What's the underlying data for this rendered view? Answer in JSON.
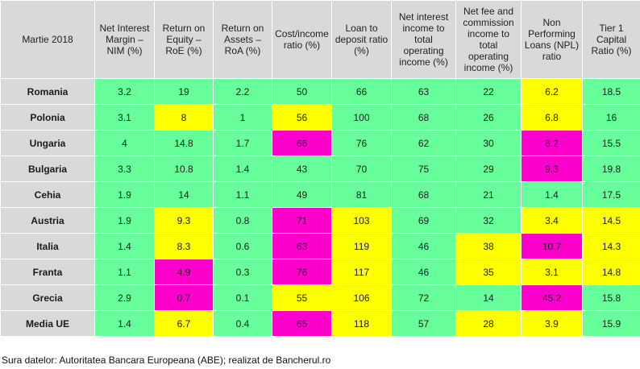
{
  "chart_data": {
    "type": "table",
    "corner_label": "Martie 2018",
    "columns": [
      "Net Interest Margin – NIM (%)",
      "Return on Equity – RoE (%)",
      "Return on Assets – RoA (%)",
      "Cost/income ratio (%)",
      "Loan to deposit ratio (%)",
      "Net interest income to total operating income (%)",
      "Net fee and commission income to total operating income (%)",
      "Non Performing Loans (NPL) ratio",
      "Tier 1 Capital Ratio (%)"
    ],
    "rows": [
      {
        "label": "Romania",
        "values": [
          "3.2",
          "19",
          "2.2",
          "50",
          "66",
          "63",
          "22",
          "6.2",
          "18.5"
        ],
        "status": [
          "g",
          "g",
          "g",
          "g",
          "g",
          "g",
          "g",
          "y",
          "g"
        ]
      },
      {
        "label": "Polonia",
        "values": [
          "3.1",
          "8",
          "1",
          "56",
          "100",
          "68",
          "26",
          "6.8",
          "16"
        ],
        "status": [
          "g",
          "y",
          "g",
          "y",
          "g",
          "g",
          "g",
          "y",
          "g"
        ]
      },
      {
        "label": "Ungaria",
        "values": [
          "4",
          "14.8",
          "1.7",
          "66",
          "76",
          "62",
          "30",
          "8.2",
          "15.5"
        ],
        "status": [
          "g",
          "g",
          "g",
          "m",
          "g",
          "g",
          "g",
          "m",
          "g"
        ]
      },
      {
        "label": "Bulgaria",
        "values": [
          "3.3",
          "10.8",
          "1.4",
          "43",
          "70",
          "75",
          "29",
          "9.3",
          "19.8"
        ],
        "status": [
          "g",
          "g",
          "g",
          "g",
          "g",
          "g",
          "g",
          "m",
          "g"
        ]
      },
      {
        "label": "Cehia",
        "values": [
          "1.9",
          "14",
          "1.1",
          "49",
          "81",
          "68",
          "21",
          "1.4",
          "17.5"
        ],
        "status": [
          "g",
          "g",
          "g",
          "g",
          "g",
          "g",
          "g",
          "g",
          "g"
        ]
      },
      {
        "label": "Austria",
        "values": [
          "1.9",
          "9.3",
          "0.8",
          "71",
          "103",
          "69",
          "32",
          "3.4",
          "14.5"
        ],
        "status": [
          "g",
          "y",
          "g",
          "m",
          "y",
          "g",
          "g",
          "y",
          "y"
        ]
      },
      {
        "label": "Italia",
        "values": [
          "1.4",
          "8.3",
          "0.6",
          "63",
          "119",
          "46",
          "38",
          "10.7",
          "14.3"
        ],
        "status": [
          "g",
          "y",
          "g",
          "m",
          "y",
          "g",
          "y",
          "m",
          "y"
        ]
      },
      {
        "label": "Franta",
        "values": [
          "1.1",
          "4.9",
          "0.3",
          "76",
          "117",
          "46",
          "35",
          "3.1",
          "14.8"
        ],
        "status": [
          "g",
          "m",
          "g",
          "m",
          "y",
          "g",
          "y",
          "y",
          "y"
        ]
      },
      {
        "label": "Grecia",
        "values": [
          "2.9",
          "0.7",
          "0.1",
          "55",
          "106",
          "72",
          "14",
          "45.2",
          "15.8"
        ],
        "status": [
          "g",
          "m",
          "g",
          "y",
          "y",
          "g",
          "g",
          "m",
          "g"
        ]
      },
      {
        "label": "Media UE",
        "values": [
          "1.4",
          "6.7",
          "0.4",
          "65",
          "118",
          "57",
          "28",
          "3.9",
          "15.9"
        ],
        "status": [
          "g",
          "y",
          "g",
          "m",
          "y",
          "g",
          "y",
          "y",
          "g"
        ]
      }
    ],
    "status_colors": {
      "g": "#66ff99",
      "y": "#ffff00",
      "m": "#ff00cc"
    }
  },
  "source_note": "Sura datelor: Autoritatea Bancara Europeana (ABE); realizat de Bancherul.ro"
}
